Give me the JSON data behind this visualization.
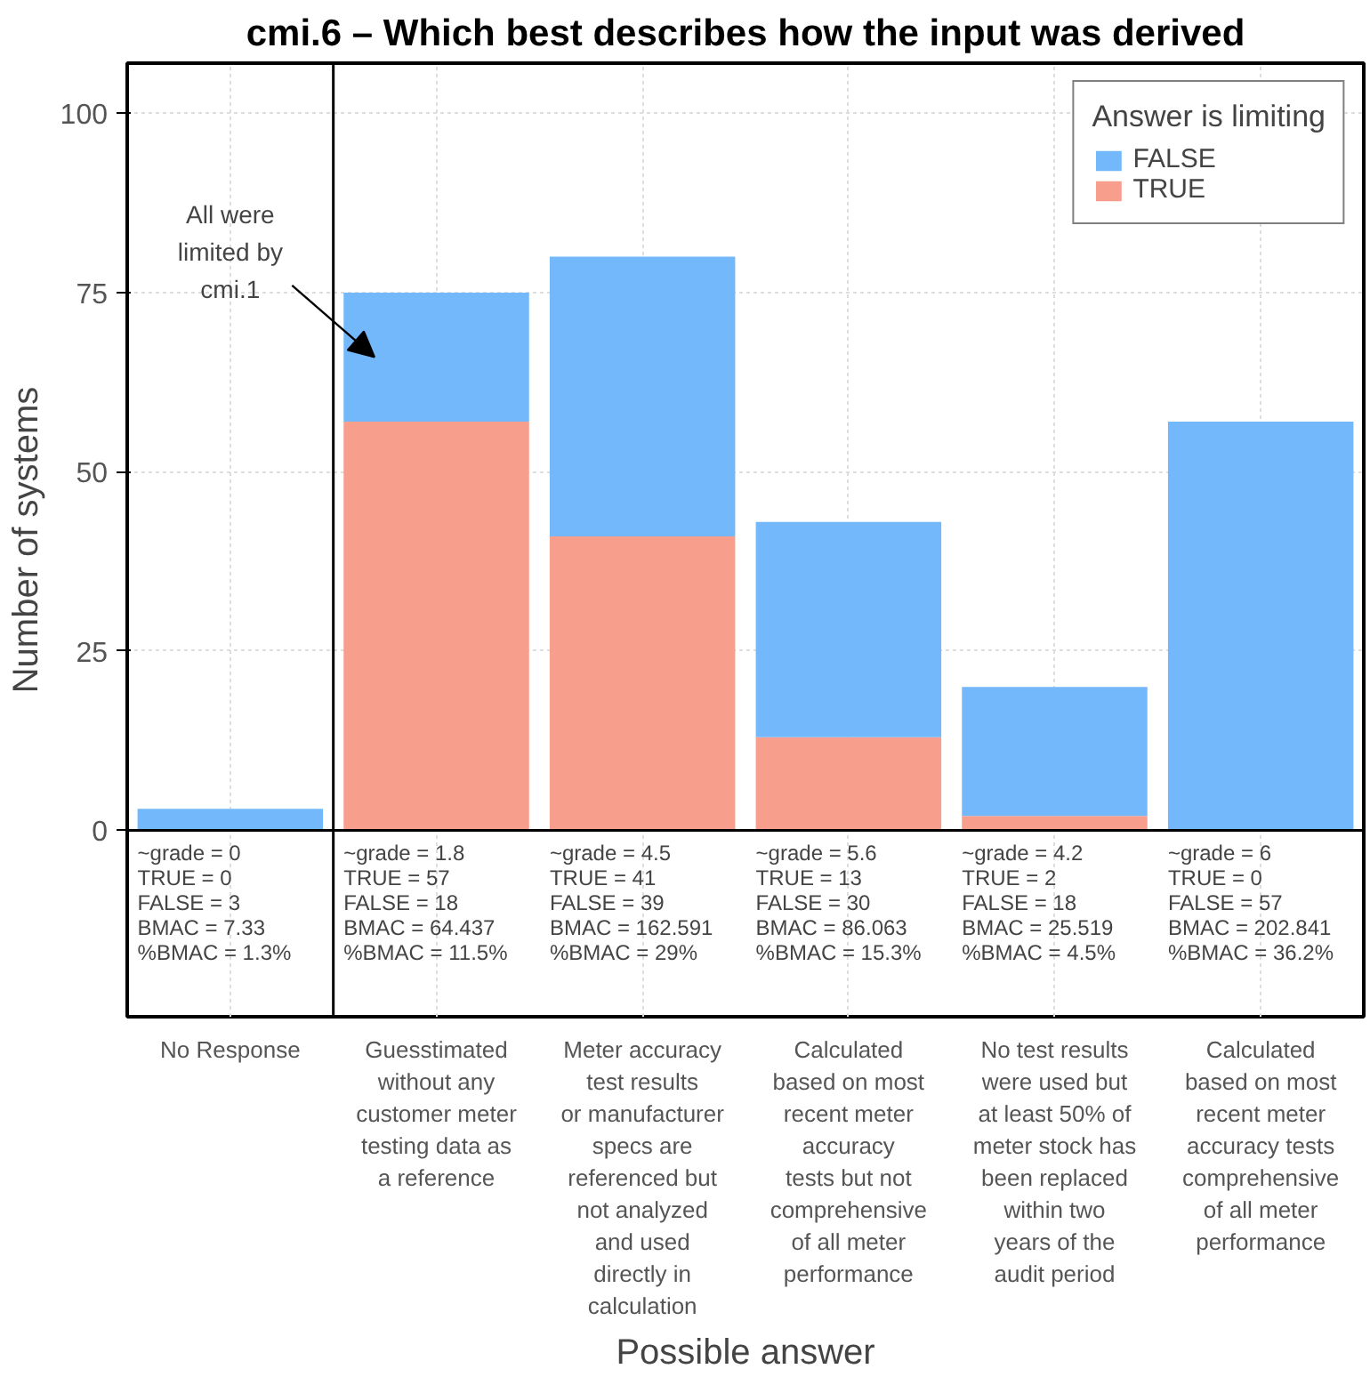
{
  "chart_data": {
    "type": "bar",
    "stacked": true,
    "title": "cmi.6 – Which best describes how the input was derived",
    "xlabel": "Possible answer",
    "ylabel": "Number of systems",
    "legend_title": "Answer is limiting",
    "legend": "top right",
    "grid": true,
    "categories": [
      "No Response",
      "Guesstimated\nwithout any\ncustomer meter\ntesting data as\na reference",
      "Meter accuracy\ntest results\nor manufacturer\nspecs are\nreferenced but\nnot analyzed\nand used\ndirectly in\ncalculation",
      "Calculated\nbased on most\nrecent meter\naccuracy\ntests but not\ncomprehensive\nof all meter\nperformance",
      "No test results\nwere used but\nat least 50% of\nmeter stock has\nbeen replaced\nwithin two\nyears of the\naudit period",
      "Calculated\nbased on most\nrecent meter\naccuracy tests\ncomprehensive\nof all meter\nperformance"
    ],
    "series": [
      {
        "name": "TRUE",
        "color": "#f89e8c",
        "values": [
          0,
          57,
          41,
          13,
          2,
          0
        ]
      },
      {
        "name": "FALSE",
        "color": "#74b8fc",
        "values": [
          3,
          18,
          39,
          30,
          18,
          57
        ]
      }
    ],
    "ylim": [
      -26,
      107
    ],
    "yticks": [
      0,
      25,
      50,
      75,
      100
    ],
    "annotations": [
      "~grade = 0\nTRUE = 0\nFALSE = 3\nBMAC = 7.33\n%BMAC = 1.3%",
      "~grade = 1.8\nTRUE = 57\nFALSE = 18\nBMAC = 64.437\n%BMAC = 11.5%",
      "~grade = 4.5\nTRUE = 41\nFALSE = 39\nBMAC = 162.591\n%BMAC = 29%",
      "~grade = 5.6\nTRUE = 13\nFALSE = 30\nBMAC = 86.063\n%BMAC = 15.3%",
      "~grade = 4.2\nTRUE = 2\nFALSE = 18\nBMAC = 25.519\n%BMAC = 4.5%",
      "~grade = 6\nTRUE = 0\nFALSE = 57\nBMAC = 202.841\n%BMAC = 36.2%",
      "All were\nlimited by\ncmi.1"
    ]
  }
}
